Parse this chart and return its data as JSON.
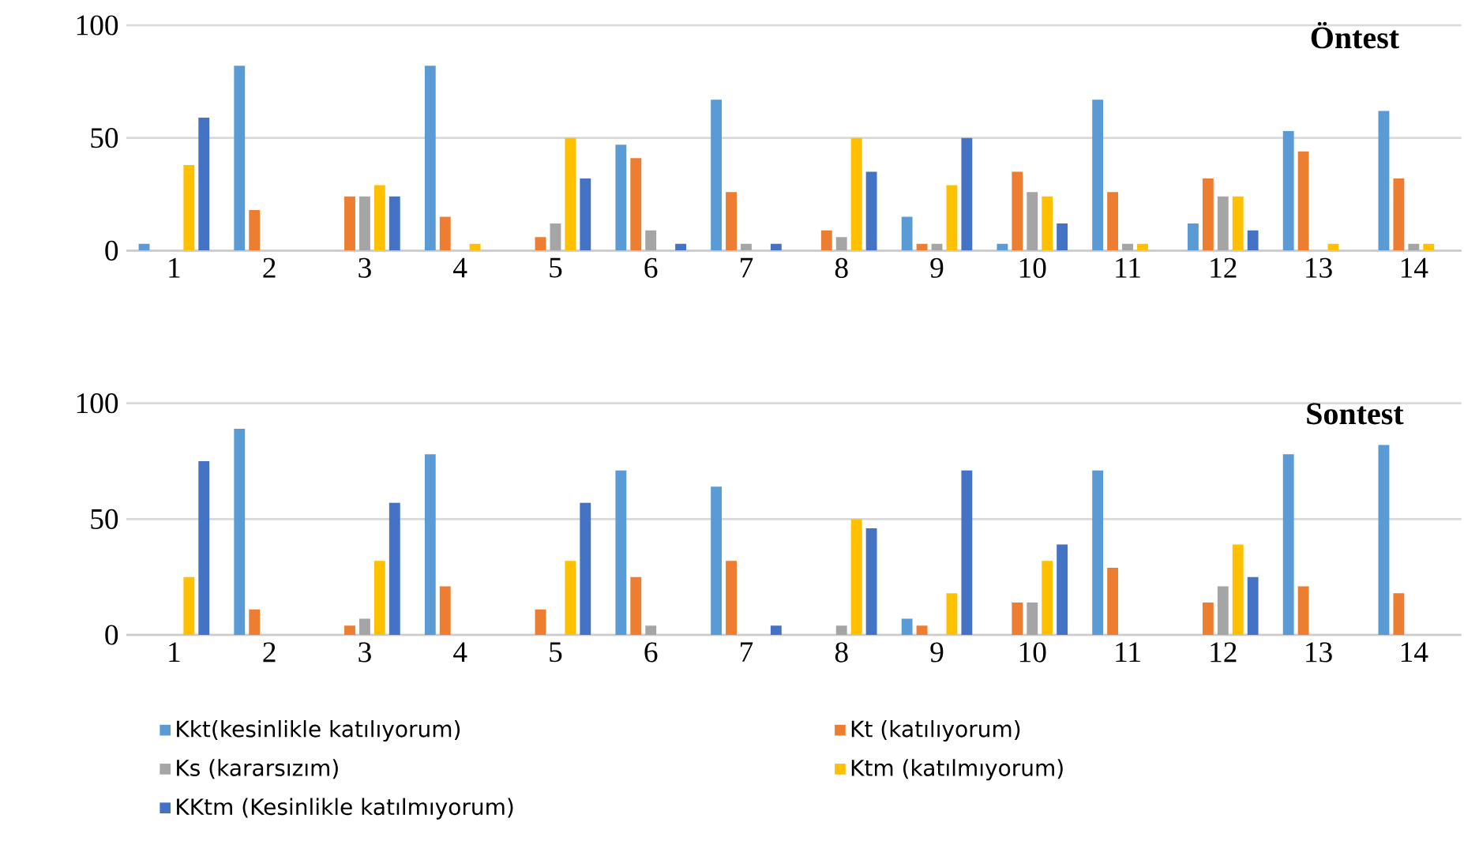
{
  "chart_data": [
    {
      "type": "bar",
      "title": "Öntest",
      "categories": [
        "1",
        "2",
        "3",
        "4",
        "5",
        "6",
        "7",
        "8",
        "9",
        "10",
        "11",
        "12",
        "13",
        "14"
      ],
      "ylim": [
        0,
        100
      ],
      "yticks": [
        0,
        50,
        100
      ],
      "grid": "y",
      "series": [
        {
          "color": "#5b9bd5",
          "values": [
            3,
            82,
            0,
            82,
            0,
            47,
            67,
            0,
            15,
            3,
            67,
            12,
            53,
            62
          ]
        },
        {
          "color": "#ed7d31",
          "values": [
            0,
            18,
            24,
            15,
            6,
            41,
            26,
            9,
            3,
            35,
            26,
            32,
            44,
            32
          ]
        },
        {
          "color": "#a5a5a5",
          "values": [
            0,
            0,
            24,
            0,
            12,
            9,
            3,
            6,
            3,
            26,
            3,
            24,
            0,
            3
          ]
        },
        {
          "color": "#ffc000",
          "values": [
            38,
            0,
            29,
            3,
            50,
            0,
            0,
            50,
            29,
            24,
            3,
            24,
            3,
            3
          ]
        },
        {
          "color": "#4472c4",
          "values": [
            59,
            0,
            24,
            0,
            32,
            3,
            3,
            35,
            50,
            12,
            0,
            9,
            0,
            0
          ]
        }
      ]
    },
    {
      "type": "bar",
      "title": "Sontest",
      "categories": [
        "1",
        "2",
        "3",
        "4",
        "5",
        "6",
        "7",
        "8",
        "9",
        "10",
        "11",
        "12",
        "13",
        "14"
      ],
      "ylim": [
        0,
        100
      ],
      "yticks": [
        0,
        50,
        100
      ],
      "grid": "y",
      "legend": "bottom",
      "series": [
        {
          "name": "Kkt(kesinlikle katılıyorum)",
          "color": "#5b9bd5",
          "values": [
            0,
            89,
            0,
            78,
            0,
            71,
            64,
            0,
            7,
            0,
            71,
            0,
            78,
            82
          ]
        },
        {
          "name": "Kt (katılıyorum)",
          "color": "#ed7d31",
          "values": [
            0,
            11,
            4,
            21,
            11,
            25,
            32,
            0,
            4,
            14,
            29,
            14,
            21,
            18
          ]
        },
        {
          "name": "Ks (kararsızım)",
          "color": "#a5a5a5",
          "values": [
            0,
            0,
            7,
            0,
            0,
            4,
            0,
            4,
            0,
            14,
            0,
            21,
            0,
            0
          ]
        },
        {
          "name": "Ktm (katılmıyorum)",
          "color": "#ffc000",
          "values": [
            25,
            0,
            32,
            0,
            32,
            0,
            0,
            50,
            18,
            32,
            0,
            39,
            0,
            0
          ]
        },
        {
          "name": "KKtm (Kesinlikle katılmıyorum)",
          "color": "#4472c4",
          "values": [
            75,
            0,
            57,
            0,
            57,
            0,
            4,
            46,
            71,
            39,
            0,
            25,
            0,
            0
          ]
        }
      ]
    }
  ]
}
